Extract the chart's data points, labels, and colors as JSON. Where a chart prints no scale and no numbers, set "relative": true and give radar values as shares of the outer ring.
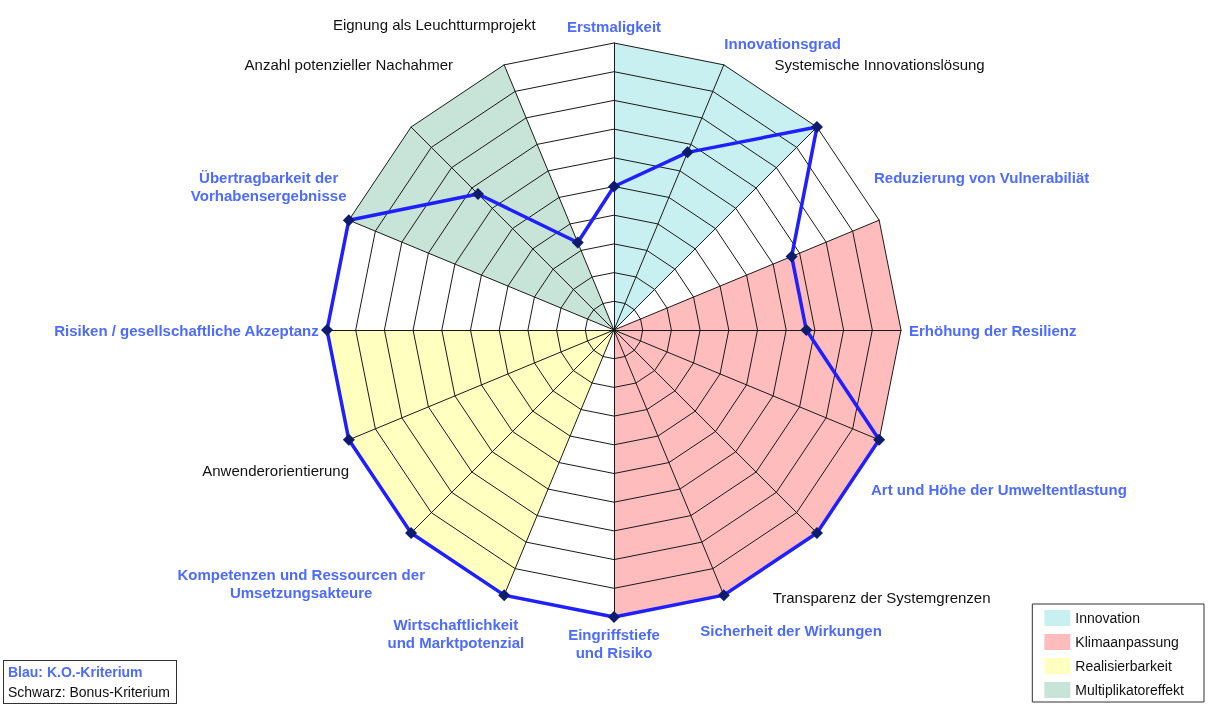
{
  "chart_data": {
    "type": "radar",
    "relative": true,
    "marker": "diamond",
    "legend": "bottom right",
    "categories": [
      "Erstmaligkeit",
      "Innovationsgrad",
      "Systemische Innovationslösung",
      "Reduzierung von Vulnerabiliät",
      "Erhöhung der Resilienz",
      "Art und Höhe der Umweltentlastung",
      "Transparenz der Systemgrenzen",
      "Sicherheit der Wirkungen",
      "Eingriffstiefe\nund Risiko",
      "Wirtschaftlichkeit\nund Marktpotenzial",
      "Kompetenzen und Ressourcen der\nUmsetzungsakteure",
      "Anwenderorientierung",
      "Risiken / gesellschaftliche Akzeptanz",
      "Übertragbarkeit der\nVorhabensergebnisse",
      "Anzahl potenzieller Nachahmer",
      "Eignung als Leuchtturmprojekt"
    ],
    "annotations": [
      "Blau: K.O.-Kriterium",
      "Schwarz: Bonus-Kriterium"
    ],
    "series": [
      {
        "name": "Innovation",
        "type": "area",
        "marker": "none",
        "color": "#c8f0f0",
        "values": [
          1,
          1,
          1,
          0,
          0,
          0,
          0,
          0,
          0,
          0,
          0,
          0,
          0,
          0,
          0,
          0
        ]
      },
      {
        "name": "Klimaanpassung",
        "type": "area",
        "marker": "none",
        "color": "#ffbcbc",
        "values": [
          0,
          0,
          0,
          1,
          1,
          1,
          1,
          1,
          1,
          0,
          0,
          0,
          0,
          0,
          0,
          0
        ]
      },
      {
        "name": "Realisierbarkeit",
        "type": "area",
        "marker": "none",
        "color": "#ffffc0",
        "values": [
          0,
          0,
          0,
          0,
          0,
          0,
          0,
          0,
          0,
          1,
          1,
          1,
          1,
          0,
          0,
          0
        ]
      },
      {
        "name": "Multiplikatoreffekt",
        "type": "area",
        "marker": "none",
        "color": "#c8e4d8",
        "values": [
          0,
          0,
          0,
          0,
          0,
          0,
          0,
          0,
          0,
          0,
          0,
          0,
          0,
          1,
          1,
          1
        ]
      },
      {
        "color": "#1f1fff",
        "values": [
          0.5,
          0.67,
          1,
          0.67,
          0.67,
          1,
          1,
          1,
          1,
          1,
          1,
          1,
          1,
          1,
          0.67,
          0.33
        ]
      }
    ]
  }
}
